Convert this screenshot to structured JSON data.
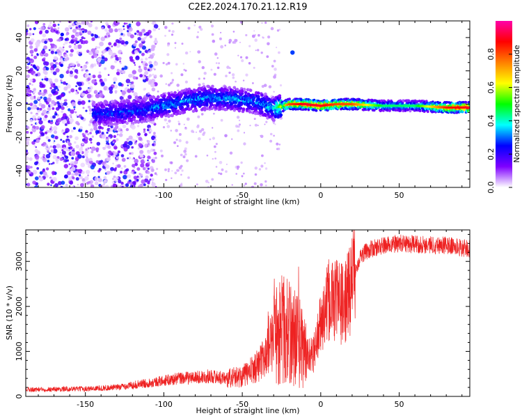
{
  "title": "C2E2.2024.170.21.12.R19",
  "chart_data": [
    {
      "type": "heatmap",
      "title": "C2E2.2024.170.21.12.R19",
      "xlabel": "Height of straight line (km)",
      "ylabel": "Frequency (Hz)",
      "xlim": [
        -188,
        95
      ],
      "ylim": [
        -50,
        50
      ],
      "xticks": [
        -150,
        -100,
        -50,
        0,
        50
      ],
      "yticks": [
        -40,
        -20,
        0,
        20,
        40
      ],
      "colorbar": {
        "label": "Normalized spectral amplitude",
        "range": [
          0,
          1
        ],
        "ticks": [
          "0.0",
          "0.2",
          "0.4",
          "0.6",
          "0.8"
        ],
        "colors": [
          "#ffffff",
          "#7f00ff",
          "#0000ff",
          "#00ffff",
          "#00ff00",
          "#ffff00",
          "#ff8000",
          "#ff0000",
          "#ff00aa"
        ]
      },
      "ridge": {
        "x": [
          -145,
          -130,
          -115,
          -100,
          -85,
          -70,
          -55,
          -40,
          -30,
          -20,
          -10,
          0,
          10,
          20,
          40,
          60,
          80,
          95
        ],
        "frequency": [
          -6,
          -5,
          -4,
          -1,
          2,
          4,
          3,
          1,
          -3,
          0,
          0,
          -1,
          0,
          0,
          -1,
          -1,
          -2,
          -2
        ],
        "peak_amplitude": [
          0.3,
          0.3,
          0.3,
          0.35,
          0.35,
          0.35,
          0.35,
          0.35,
          0.4,
          0.8,
          0.9,
          0.9,
          0.8,
          0.8,
          0.45,
          0.45,
          0.85,
          0.9
        ]
      },
      "noise_region_x": [
        -188,
        -115
      ],
      "outlier": {
        "x": -18,
        "frequency": 31
      }
    },
    {
      "type": "line",
      "xlabel": "Height of straight line (km)",
      "ylabel": "SNR (10 * v/v)",
      "xlim": [
        -188,
        95
      ],
      "ylim": [
        0,
        3700
      ],
      "xticks": [
        -150,
        -100,
        -50,
        0,
        50
      ],
      "yticks": [
        0,
        1000,
        2000,
        3000
      ],
      "color": "#ee2222",
      "x": [
        -188,
        -170,
        -150,
        -130,
        -120,
        -110,
        -100,
        -90,
        -80,
        -70,
        -60,
        -50,
        -45,
        -40,
        -35,
        -30,
        -25,
        -20,
        -15,
        -10,
        -5,
        0,
        5,
        10,
        15,
        20,
        25,
        30,
        40,
        50,
        60,
        70,
        80,
        90,
        95
      ],
      "values": [
        150,
        160,
        170,
        200,
        250,
        300,
        350,
        400,
        420,
        450,
        400,
        450,
        550,
        700,
        900,
        1300,
        1500,
        1400,
        1300,
        1000,
        900,
        1600,
        2100,
        2200,
        2000,
        2600,
        3100,
        3250,
        3350,
        3400,
        3380,
        3370,
        3360,
        3300,
        3280
      ]
    }
  ]
}
